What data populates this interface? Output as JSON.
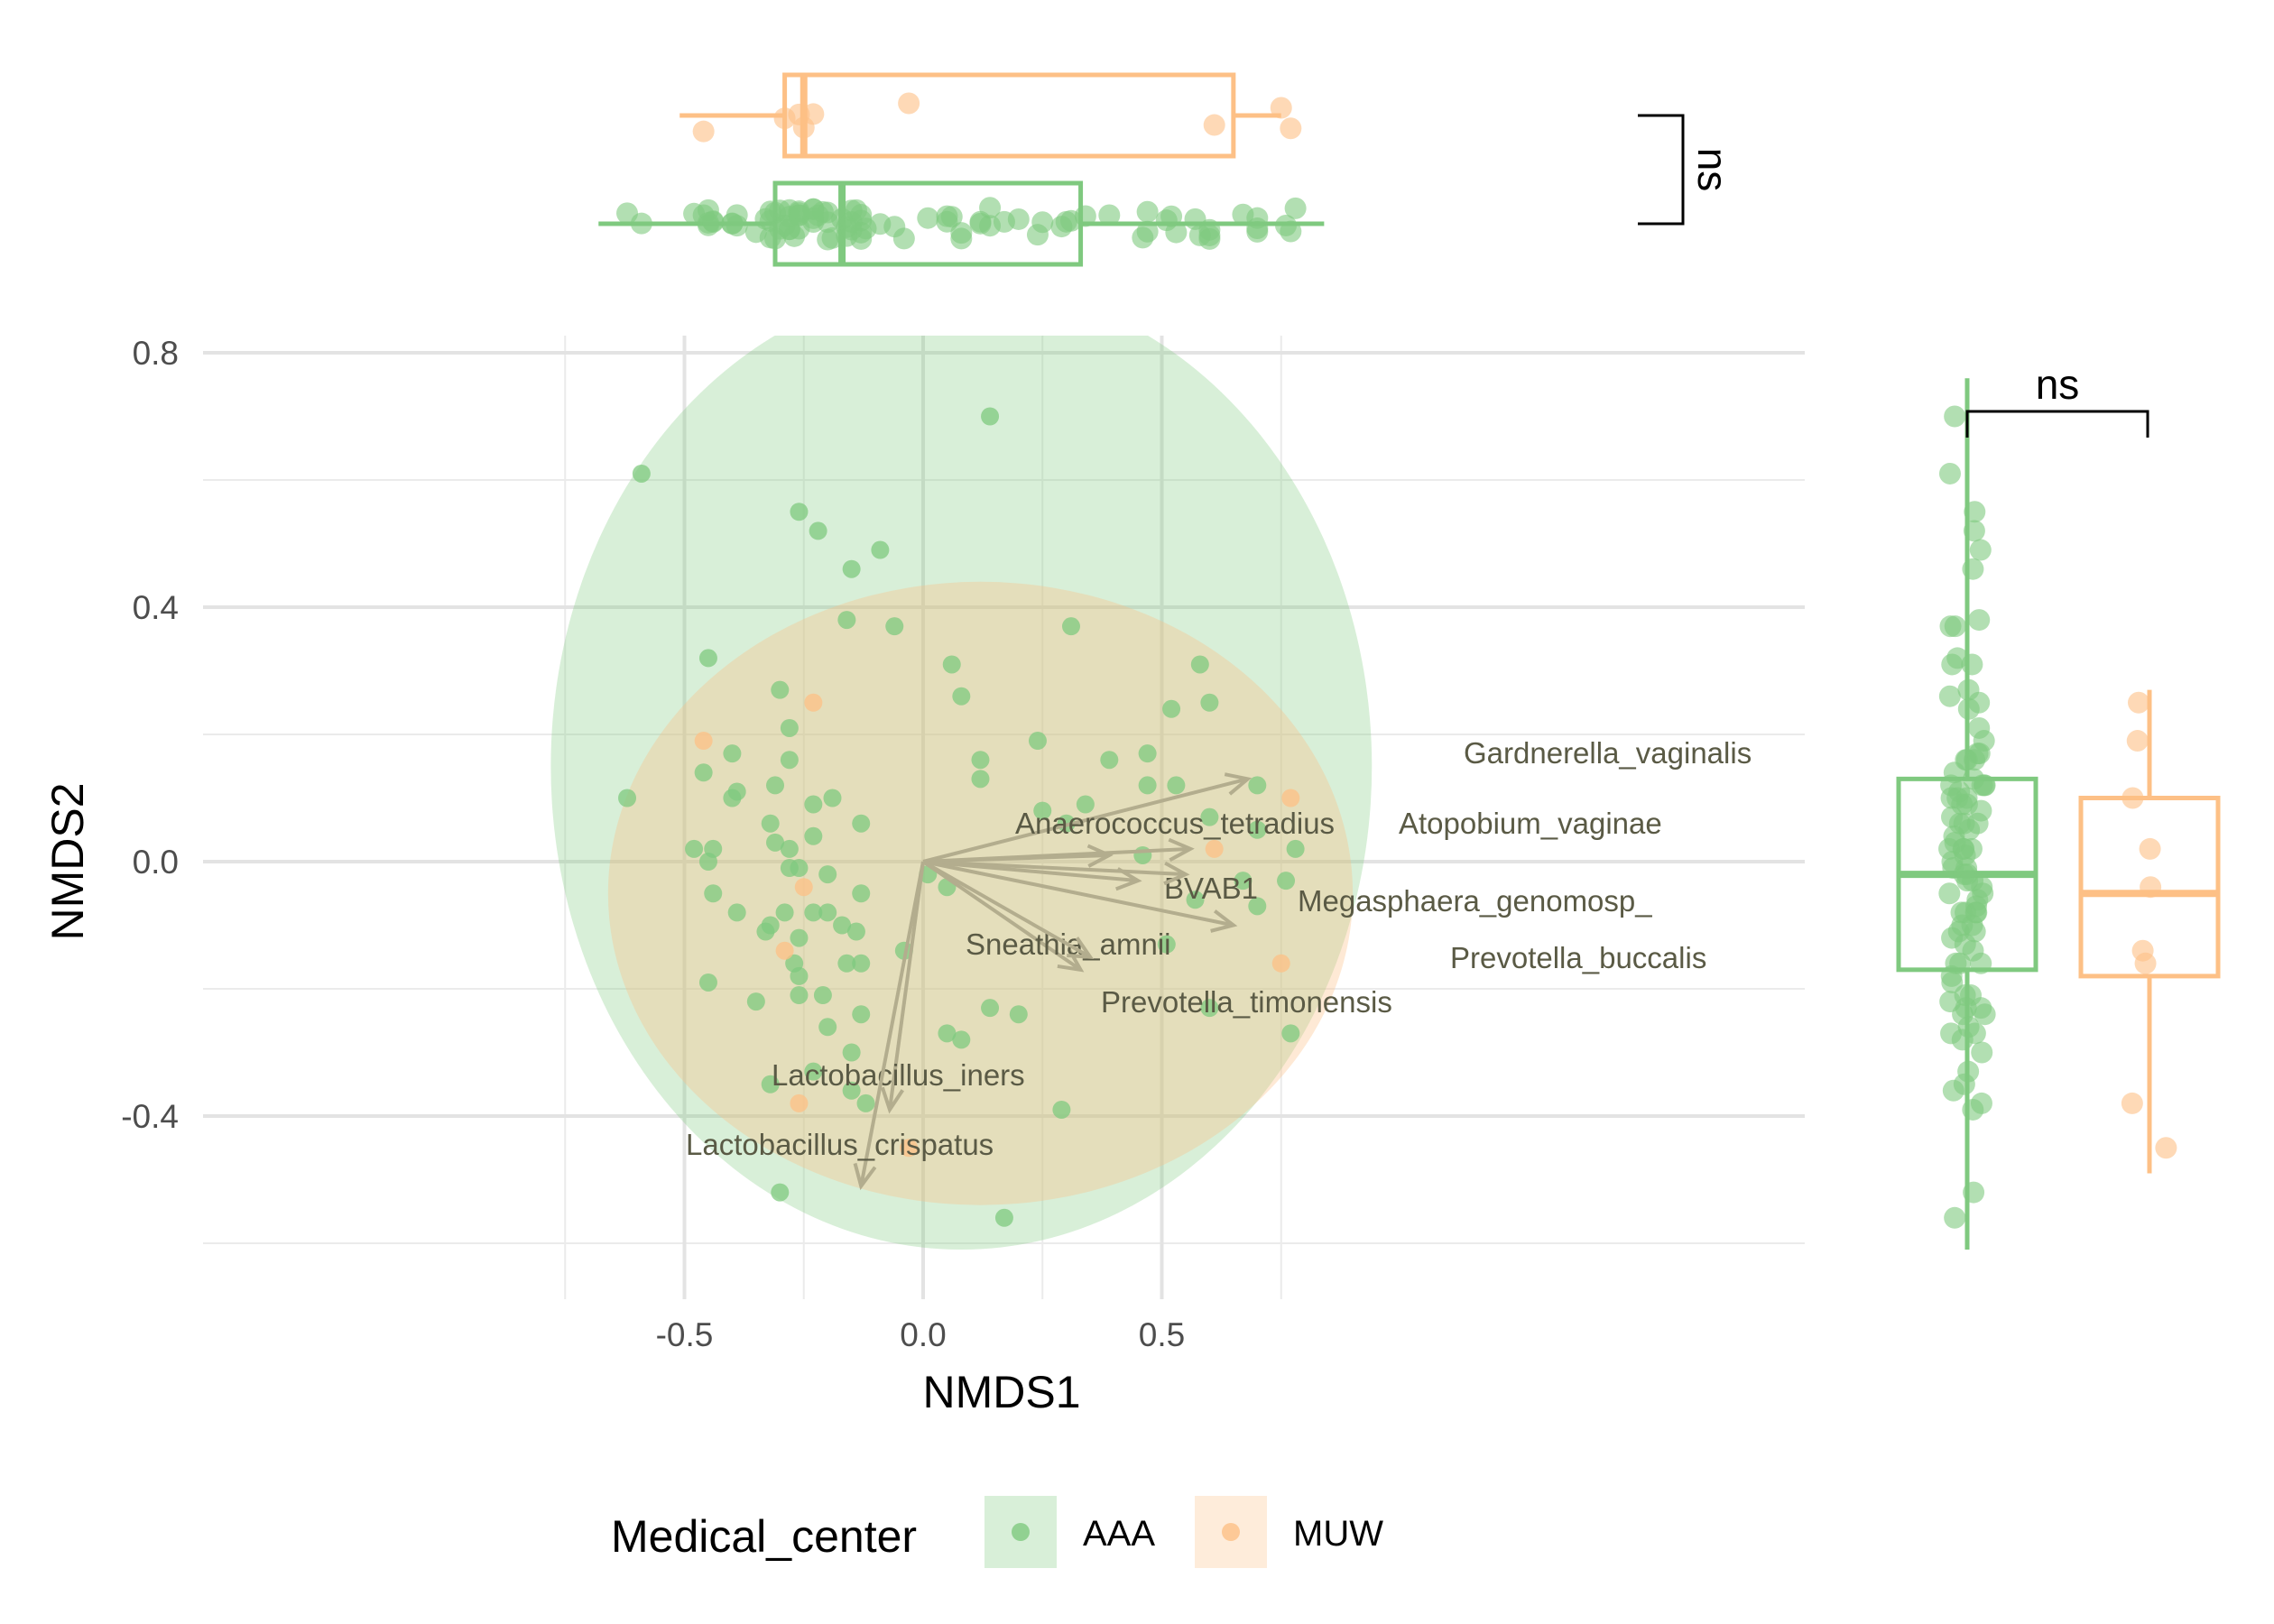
{
  "chart_data": {
    "type": "scatter",
    "xlabel": "NMDS1",
    "ylabel": "NMDS2",
    "xlim": [
      -0.75,
      0.92
    ],
    "ylim": [
      -0.68,
      0.82
    ],
    "x_ticks": [
      "-0.5",
      "0.0",
      "0.5"
    ],
    "x_tick_values": [
      -0.5,
      0.0,
      0.5
    ],
    "y_ticks": [
      "0.8",
      "0.4",
      "0.0",
      "-0.4"
    ],
    "y_tick_values": [
      0.8,
      0.4,
      0.0,
      -0.4
    ],
    "grid": true,
    "legend": {
      "title": "Medical_center",
      "position": "bottom",
      "entries": [
        {
          "label": "AAA",
          "color": "#7fc97f"
        },
        {
          "label": "MUW",
          "color": "#fdc086"
        }
      ]
    },
    "ellipses": [
      {
        "group": "AAA",
        "cx": 0.08,
        "cy": 0.15,
        "rx": 0.86,
        "ry": 0.76,
        "rotation_deg": 0
      },
      {
        "group": "MUW",
        "cx": 0.12,
        "cy": -0.05,
        "rx": 0.78,
        "ry": 0.49,
        "rotation_deg": 0
      }
    ],
    "series": [
      {
        "name": "AAA",
        "color": "#7fc97f",
        "points": [
          [
            -0.59,
            0.61
          ],
          [
            0.14,
            0.7
          ],
          [
            -0.26,
            0.55
          ],
          [
            -0.22,
            0.52
          ],
          [
            -0.15,
            0.46
          ],
          [
            -0.09,
            0.49
          ],
          [
            -0.45,
            0.32
          ],
          [
            -0.16,
            0.38
          ],
          [
            -0.06,
            0.37
          ],
          [
            0.31,
            0.37
          ],
          [
            0.06,
            0.31
          ],
          [
            0.08,
            0.26
          ],
          [
            -0.3,
            0.27
          ],
          [
            -0.28,
            0.21
          ],
          [
            -0.4,
            0.17
          ],
          [
            -0.46,
            0.14
          ],
          [
            -0.28,
            0.16
          ],
          [
            -0.31,
            0.12
          ],
          [
            -0.39,
            0.11
          ],
          [
            -0.4,
            0.1
          ],
          [
            -0.62,
            0.1
          ],
          [
            -0.23,
            0.09
          ],
          [
            -0.19,
            0.1
          ],
          [
            -0.13,
            0.06
          ],
          [
            -0.32,
            0.06
          ],
          [
            -0.23,
            0.04
          ],
          [
            -0.31,
            0.03
          ],
          [
            -0.48,
            0.02
          ],
          [
            -0.44,
            0.02
          ],
          [
            -0.45,
            0.0
          ],
          [
            -0.28,
            0.02
          ],
          [
            -0.28,
            -0.01
          ],
          [
            -0.26,
            -0.01
          ],
          [
            -0.2,
            -0.02
          ],
          [
            -0.44,
            -0.05
          ],
          [
            -0.39,
            -0.08
          ],
          [
            -0.29,
            -0.08
          ],
          [
            -0.23,
            -0.08
          ],
          [
            -0.2,
            -0.08
          ],
          [
            -0.13,
            -0.05
          ],
          [
            -0.33,
            -0.11
          ],
          [
            -0.17,
            -0.1
          ],
          [
            -0.14,
            -0.11
          ],
          [
            -0.32,
            -0.1
          ],
          [
            -0.26,
            -0.12
          ],
          [
            -0.27,
            -0.16
          ],
          [
            -0.45,
            -0.19
          ],
          [
            -0.26,
            -0.18
          ],
          [
            -0.16,
            -0.16
          ],
          [
            -0.13,
            -0.16
          ],
          [
            -0.35,
            -0.22
          ],
          [
            -0.26,
            -0.21
          ],
          [
            -0.21,
            -0.21
          ],
          [
            -0.13,
            -0.24
          ],
          [
            -0.2,
            -0.26
          ],
          [
            -0.15,
            -0.3
          ],
          [
            -0.23,
            -0.33
          ],
          [
            -0.32,
            -0.35
          ],
          [
            -0.15,
            -0.36
          ],
          [
            -0.12,
            -0.38
          ],
          [
            -0.04,
            -0.14
          ],
          [
            0.01,
            -0.02
          ],
          [
            0.05,
            -0.04
          ],
          [
            0.12,
            0.13
          ],
          [
            0.12,
            0.16
          ],
          [
            0.24,
            0.19
          ],
          [
            0.25,
            0.08
          ],
          [
            0.3,
            0.06
          ],
          [
            0.34,
            0.09
          ],
          [
            0.39,
            0.16
          ],
          [
            0.47,
            0.17
          ],
          [
            0.47,
            0.12
          ],
          [
            0.52,
            0.24
          ],
          [
            0.53,
            0.12
          ],
          [
            0.58,
            0.31
          ],
          [
            0.6,
            0.25
          ],
          [
            0.46,
            0.01
          ],
          [
            0.6,
            0.07
          ],
          [
            0.7,
            0.12
          ],
          [
            0.7,
            0.05
          ],
          [
            0.76,
            -0.03
          ],
          [
            0.78,
            0.02
          ],
          [
            0.7,
            -0.07
          ],
          [
            0.57,
            -0.06
          ],
          [
            0.67,
            -0.03
          ],
          [
            0.51,
            -0.13
          ],
          [
            0.6,
            -0.23
          ],
          [
            0.77,
            -0.27
          ],
          [
            0.05,
            -0.27
          ],
          [
            0.08,
            -0.28
          ],
          [
            0.14,
            -0.23
          ],
          [
            0.2,
            -0.24
          ],
          [
            0.29,
            -0.39
          ],
          [
            0.17,
            -0.56
          ],
          [
            -0.3,
            -0.52
          ]
        ]
      },
      {
        "name": "MUW",
        "color": "#fdc086",
        "points": [
          [
            -0.46,
            0.19
          ],
          [
            -0.23,
            0.25
          ],
          [
            -0.25,
            -0.04
          ],
          [
            -0.29,
            -0.14
          ],
          [
            -0.26,
            -0.38
          ],
          [
            -0.03,
            -0.45
          ],
          [
            0.61,
            0.02
          ],
          [
            0.77,
            0.1
          ],
          [
            0.75,
            -0.16
          ]
        ]
      }
    ],
    "vectors": [
      {
        "label": "Gardnerella_vaginalis",
        "x": 0.68,
        "y": 0.13
      },
      {
        "label": "Anaerococcus_tetradius",
        "x": 0.39,
        "y": 0.01
      },
      {
        "label": "Atopobium_vaginae",
        "x": 0.56,
        "y": 0.02
      },
      {
        "label": "BVAB1",
        "x": 0.45,
        "y": -0.03
      },
      {
        "label": "Megasphaera_genomosp_",
        "x": 0.55,
        "y": -0.02
      },
      {
        "label": "Prevotella_buccalis",
        "x": 0.65,
        "y": -0.1
      },
      {
        "label": "Sneathia_amnii",
        "x": 0.33,
        "y": -0.17
      },
      {
        "label": "Prevotella_timonensis",
        "x": 0.35,
        "y": -0.15
      },
      {
        "label": "Lactobacillus_iners",
        "x": -0.07,
        "y": -0.39
      },
      {
        "label": "Lactobacillus_crispatus",
        "x": -0.13,
        "y": -0.51
      }
    ],
    "marginal_boxplots": {
      "top": {
        "axis": "NMDS1",
        "significance": "ns",
        "boxes": [
          {
            "group": "MUW",
            "q1": -0.29,
            "median": -0.25,
            "q3": 0.65,
            "whisker_low": -0.51,
            "whisker_high": 0.75
          },
          {
            "group": "AAA",
            "q1": -0.31,
            "median": -0.17,
            "q3": 0.33,
            "whisker_low": -0.68,
            "whisker_high": 0.84
          }
        ]
      },
      "right": {
        "axis": "NMDS2",
        "significance": "ns",
        "boxes": [
          {
            "group": "AAA",
            "q1": -0.17,
            "median": -0.02,
            "q3": 0.13,
            "whisker_low": -0.61,
            "whisker_high": 0.76
          },
          {
            "group": "MUW",
            "q1": -0.18,
            "median": -0.05,
            "q3": 0.1,
            "whisker_low": -0.49,
            "whisker_high": 0.27
          }
        ]
      }
    }
  }
}
